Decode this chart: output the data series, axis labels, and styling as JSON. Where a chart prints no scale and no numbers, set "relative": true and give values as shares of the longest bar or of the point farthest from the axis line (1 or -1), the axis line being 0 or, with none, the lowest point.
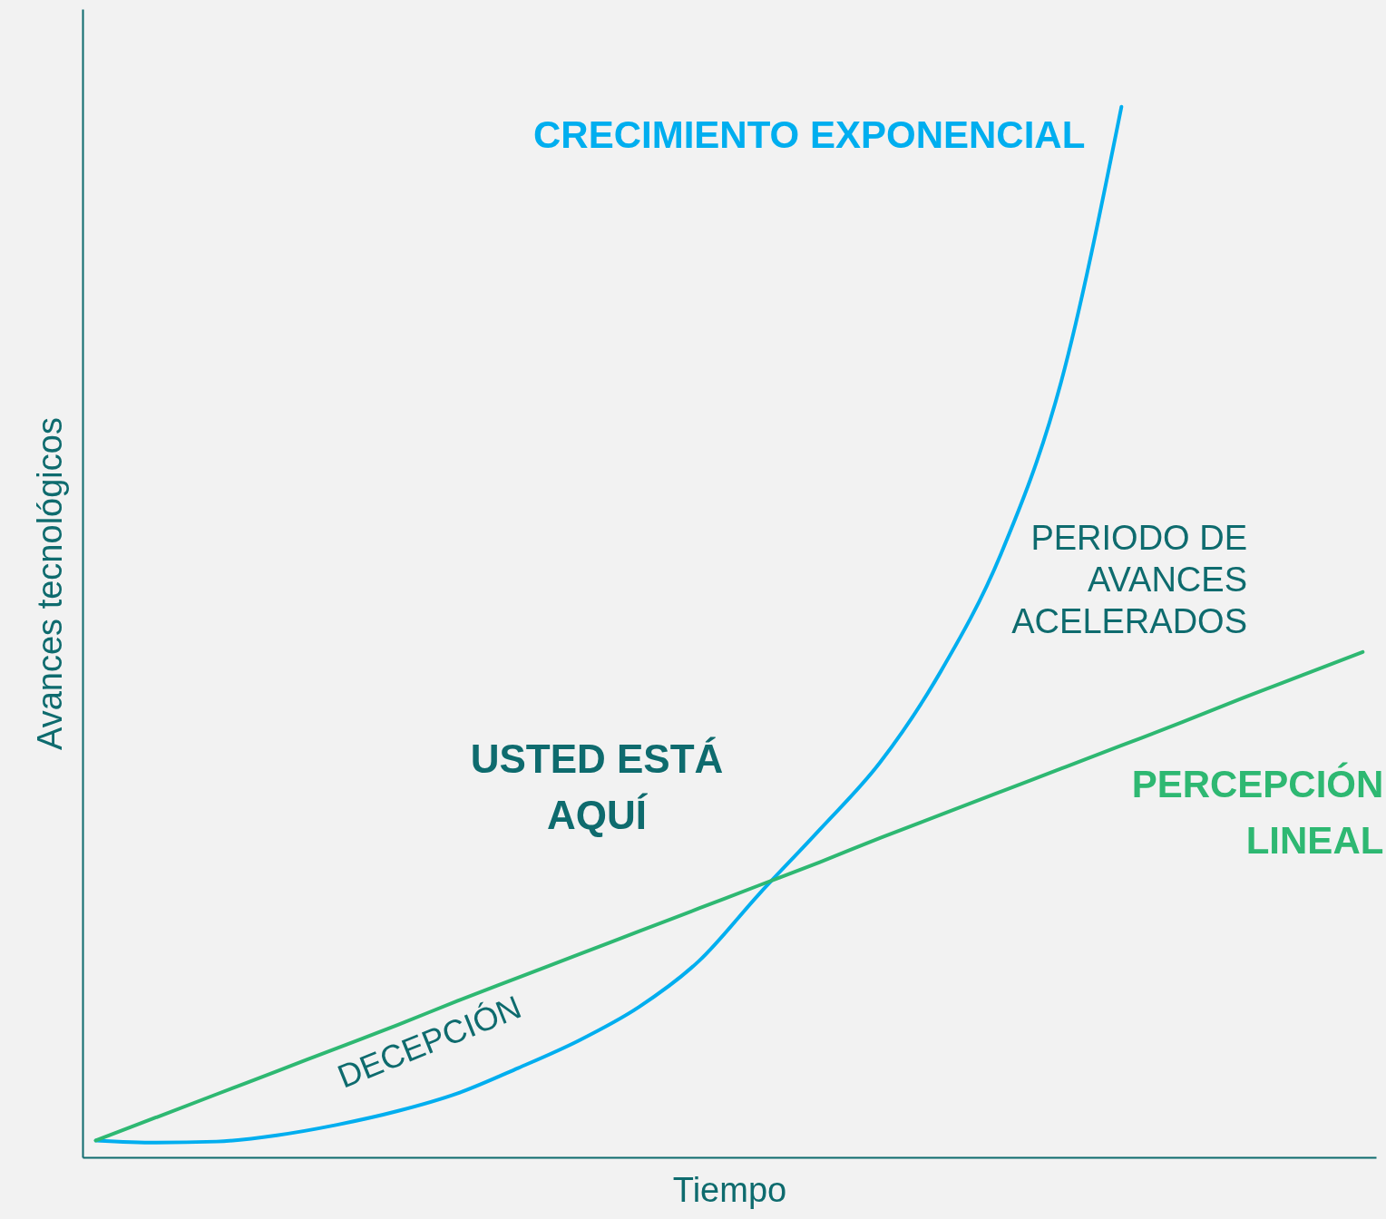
{
  "chart_data": {
    "type": "line",
    "relative": true,
    "xlabel": "Tiempo",
    "ylabel": "Avances tecnológicos",
    "categories": [
      null,
      null,
      null,
      null,
      null,
      null,
      null,
      null,
      null,
      null,
      null,
      null,
      null,
      null,
      null,
      null,
      null,
      null,
      null,
      null,
      null,
      null
    ],
    "series": [
      {
        "name": "CRECIMIENTO EXPONENCIAL",
        "color": "#00aeef",
        "values": [
          0.016,
          0.014,
          0.015,
          0.021,
          0.031,
          0.044,
          0.061,
          0.085,
          0.111,
          0.143,
          0.187,
          0.251,
          0.312,
          0.376,
          0.462,
          0.574,
          0.738,
          1,
          null,
          null,
          null,
          null
        ]
      },
      {
        "name": "PERCEPCIÓN LINEAL",
        "color": "#2eb872",
        "values": [
          0.016,
          0.038,
          0.06,
          0.082,
          0.104,
          0.126,
          0.149,
          0.171,
          0.193,
          0.215,
          0.237,
          0.259,
          0.281,
          0.304,
          0.326,
          0.348,
          0.37,
          0.392,
          0.414,
          0.437,
          0.459,
          0.481
        ]
      }
    ],
    "annotations": [
      "DECEPCIÓN",
      "USTED ESTÁ AQUÍ",
      "PERIODO DE AVANCES ACELERADOS"
    ],
    "grid": false,
    "marker": "none",
    "line_style": "solid"
  }
}
